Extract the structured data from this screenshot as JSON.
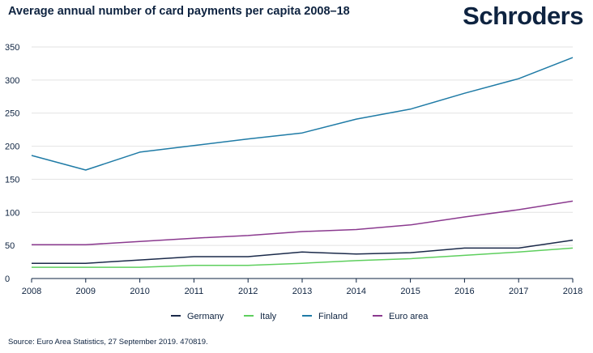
{
  "header": {
    "title": "Average annual number of card payments per capita 2008–18",
    "logo": "Schroders"
  },
  "footer": {
    "source": "Source: Euro Area Statistics, 27 September 2019. 470819."
  },
  "chart_data": {
    "type": "line",
    "title": "Average annual number of card payments per capita 2008–18",
    "x": [
      "2008",
      "2009",
      "2010",
      "2011",
      "2012",
      "2013",
      "2014",
      "2015",
      "2016",
      "2017",
      "2018"
    ],
    "ylim": [
      0,
      350
    ],
    "yticks": [
      0,
      50,
      100,
      150,
      200,
      250,
      300,
      350
    ],
    "grid": true,
    "legend": "bottom",
    "series": [
      {
        "name": "Germany",
        "color": "#1b2a4a",
        "values": [
          23,
          23,
          28,
          33,
          33,
          40,
          37,
          39,
          46,
          46,
          58
        ]
      },
      {
        "name": "Italy",
        "color": "#5ecf5e",
        "values": [
          17,
          17,
          17,
          20,
          20,
          23,
          27,
          30,
          35,
          40,
          46
        ]
      },
      {
        "name": "Finland",
        "color": "#1f7ba6",
        "values": [
          186,
          164,
          191,
          201,
          211,
          220,
          241,
          256,
          280,
          302,
          334
        ]
      },
      {
        "name": "Euro area",
        "color": "#8b3a8f",
        "values": [
          51,
          51,
          56,
          61,
          65,
          71,
          74,
          81,
          93,
          104,
          117
        ]
      }
    ]
  }
}
